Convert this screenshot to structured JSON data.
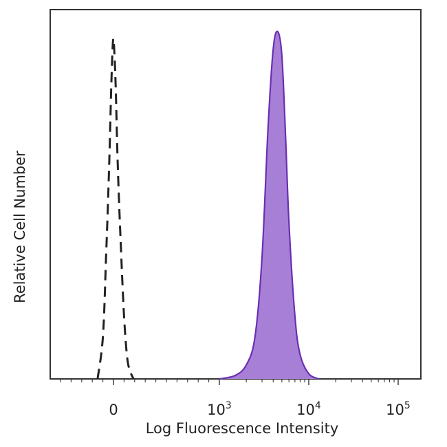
{
  "chart_data": {
    "type": "area",
    "title": "",
    "xlabel": "Log Fluorescence Intensity",
    "ylabel": "Relative Cell Number",
    "x_scale": "biexponential",
    "x_tick_labels": [
      {
        "base": "0",
        "exp": ""
      },
      {
        "base": "10",
        "exp": "3"
      },
      {
        "base": "10",
        "exp": "4"
      },
      {
        "base": "10",
        "exp": "5"
      }
    ],
    "xlim": [
      -200,
      200000
    ],
    "ylim": [
      0,
      1
    ],
    "grid": false,
    "legend": "none",
    "series": [
      {
        "style": "dashed-outline",
        "color": "#222222",
        "x": [
          -150,
          -100,
          -70,
          -40,
          -20,
          -5,
          5,
          20,
          40,
          70,
          100,
          130,
          160,
          190
        ],
        "y": [
          0.0,
          0.12,
          0.35,
          0.62,
          0.85,
          0.97,
          0.96,
          0.85,
          0.62,
          0.38,
          0.18,
          0.06,
          0.02,
          0.0
        ]
      },
      {
        "style": "filled",
        "color": "#6a2fb3",
        "fill": "#a77fd6",
        "x": [
          1000,
          1500,
          2000,
          2500,
          3000,
          3500,
          4000,
          4500,
          5000,
          5500,
          6000,
          7000,
          8000,
          10000,
          13000
        ],
        "y": [
          0.0,
          0.01,
          0.04,
          0.12,
          0.35,
          0.72,
          0.95,
          1.0,
          0.93,
          0.7,
          0.45,
          0.18,
          0.07,
          0.015,
          0.0
        ]
      }
    ]
  }
}
